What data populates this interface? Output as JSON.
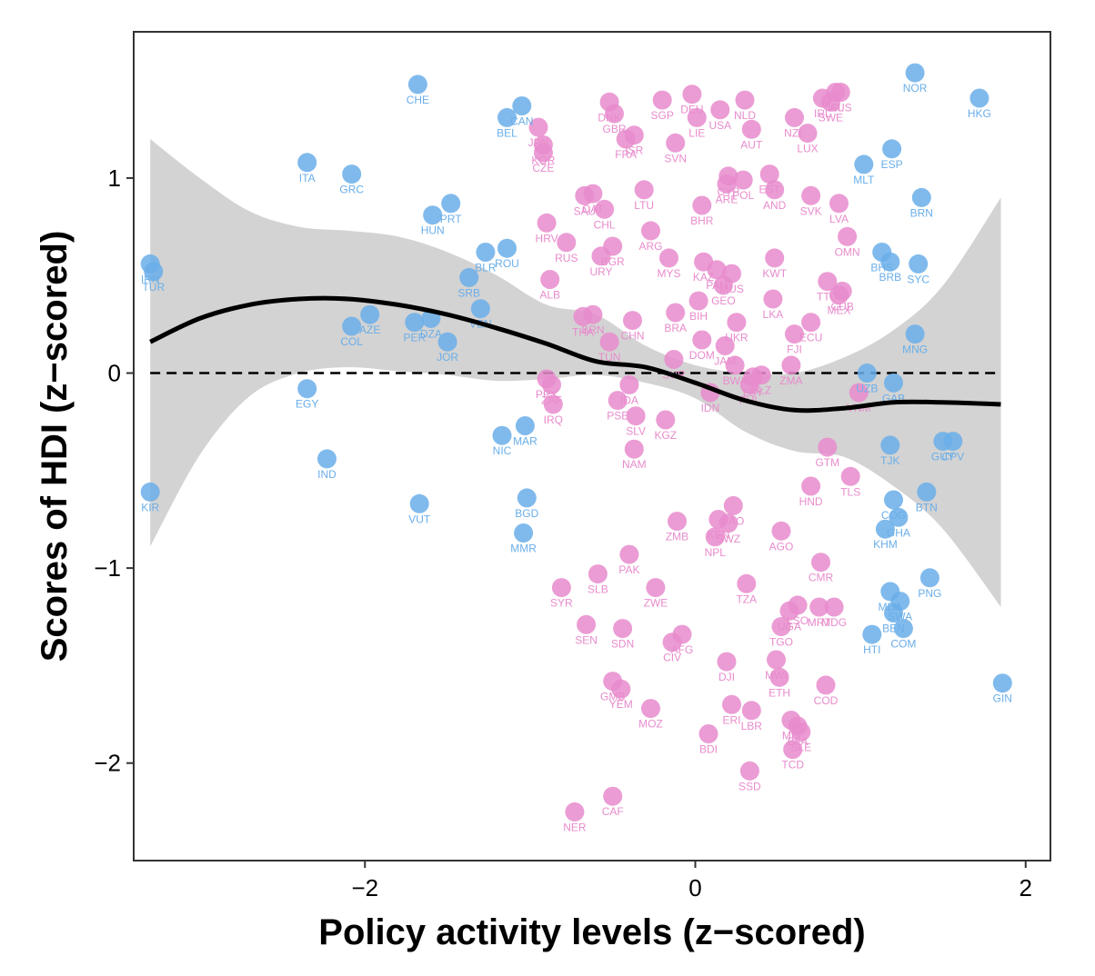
{
  "chart_data": {
    "type": "scatter",
    "xlabel": "Policy activity levels (z−scored)",
    "ylabel": "Scores of HDI (z−scored)",
    "xlim": [
      -3.4,
      2.15
    ],
    "ylim": [
      -2.5,
      1.75
    ],
    "x_ticks": [
      -2,
      0,
      2
    ],
    "y_ticks": [
      -2,
      -1,
      0,
      1
    ],
    "x_tick_labels": [
      "−2",
      "0",
      "2"
    ],
    "y_tick_labels": [
      "−2",
      "−1",
      "0",
      "1"
    ],
    "grid": false,
    "legend": "none",
    "reference_line": {
      "y": 0,
      "style": "dashed",
      "color": "#000000"
    },
    "colors": {
      "group_a": "#6aaee9",
      "group_b": "#e88bcc",
      "band": "#d3d3d3",
      "fit": "#000000"
    },
    "smooth_fit": {
      "x": [
        -3.3,
        -3.0,
        -2.7,
        -2.4,
        -2.1,
        -1.8,
        -1.5,
        -1.2,
        -0.9,
        -0.6,
        -0.3,
        0.0,
        0.3,
        0.6,
        0.9,
        1.2,
        1.5,
        1.85
      ],
      "y": [
        0.16,
        0.28,
        0.35,
        0.38,
        0.38,
        0.35,
        0.3,
        0.23,
        0.15,
        0.06,
        0.03,
        -0.05,
        -0.14,
        -0.19,
        -0.18,
        -0.15,
        -0.15,
        -0.16
      ],
      "lower": [
        -0.89,
        -0.42,
        -0.12,
        0.0,
        0.03,
        0.01,
        -0.01,
        -0.04,
        -0.03,
        -0.01,
        -0.05,
        -0.13,
        -0.3,
        -0.4,
        -0.43,
        -0.58,
        -0.8,
        -1.2
      ],
      "upper": [
        1.2,
        1.0,
        0.83,
        0.75,
        0.73,
        0.7,
        0.62,
        0.5,
        0.35,
        0.3,
        0.14,
        0.04,
        0.0,
        0.0,
        0.08,
        0.22,
        0.45,
        0.9
      ]
    },
    "points": [
      {
        "label": "CHE",
        "x": -1.68,
        "y": 1.48,
        "group": "a"
      },
      {
        "label": "NOR",
        "x": 1.33,
        "y": 1.54,
        "group": "a"
      },
      {
        "label": "HKG",
        "x": 1.72,
        "y": 1.41,
        "group": "a"
      },
      {
        "label": "CAN",
        "x": -1.05,
        "y": 1.37,
        "group": "a"
      },
      {
        "label": "BEL",
        "x": -1.14,
        "y": 1.31,
        "group": "a"
      },
      {
        "label": "ITA",
        "x": -2.35,
        "y": 1.08,
        "group": "a"
      },
      {
        "label": "GRC",
        "x": -2.08,
        "y": 1.02,
        "group": "a"
      },
      {
        "label": "MLT",
        "x": 1.02,
        "y": 1.07,
        "group": "a"
      },
      {
        "label": "ESP",
        "x": 1.19,
        "y": 1.15,
        "group": "a"
      },
      {
        "label": "BRN",
        "x": 1.37,
        "y": 0.9,
        "group": "a"
      },
      {
        "label": "PRT",
        "x": -1.48,
        "y": 0.87,
        "group": "a"
      },
      {
        "label": "HUN",
        "x": -1.59,
        "y": 0.81,
        "group": "a"
      },
      {
        "label": "BLR",
        "x": -1.27,
        "y": 0.62,
        "group": "a"
      },
      {
        "label": "ROU",
        "x": -1.14,
        "y": 0.64,
        "group": "a"
      },
      {
        "label": "IRN",
        "x": -3.3,
        "y": 0.56,
        "group": "a"
      },
      {
        "label": "TUR",
        "x": -3.28,
        "y": 0.52,
        "group": "a"
      },
      {
        "label": "SRB",
        "x": -1.37,
        "y": 0.49,
        "group": "a"
      },
      {
        "label": "VEN",
        "x": -1.3,
        "y": 0.33,
        "group": "a"
      },
      {
        "label": "AZE",
        "x": -1.97,
        "y": 0.3,
        "group": "a"
      },
      {
        "label": "COL",
        "x": -2.08,
        "y": 0.24,
        "group": "a"
      },
      {
        "label": "PER",
        "x": -1.7,
        "y": 0.26,
        "group": "a"
      },
      {
        "label": "DZA",
        "x": -1.6,
        "y": 0.28,
        "group": "a"
      },
      {
        "label": "JOR",
        "x": -1.5,
        "y": 0.16,
        "group": "a"
      },
      {
        "label": "BHS",
        "x": 1.13,
        "y": 0.62,
        "group": "a"
      },
      {
        "label": "BRB",
        "x": 1.18,
        "y": 0.57,
        "group": "a"
      },
      {
        "label": "SYC",
        "x": 1.35,
        "y": 0.56,
        "group": "a"
      },
      {
        "label": "MNG",
        "x": 1.33,
        "y": 0.2,
        "group": "a"
      },
      {
        "label": "UZB",
        "x": 1.04,
        "y": 0.0,
        "group": "a"
      },
      {
        "label": "GAB",
        "x": 1.2,
        "y": -0.05,
        "group": "a"
      },
      {
        "label": "EGY",
        "x": -2.35,
        "y": -0.08,
        "group": "a"
      },
      {
        "label": "NIC",
        "x": -1.17,
        "y": -0.32,
        "group": "a"
      },
      {
        "label": "MAR",
        "x": -1.03,
        "y": -0.27,
        "group": "a"
      },
      {
        "label": "IND",
        "x": -2.23,
        "y": -0.44,
        "group": "a"
      },
      {
        "label": "TJK",
        "x": 1.18,
        "y": -0.37,
        "group": "a"
      },
      {
        "label": "GUY",
        "x": 1.5,
        "y": -0.35,
        "group": "a"
      },
      {
        "label": "CPV",
        "x": 1.56,
        "y": -0.35,
        "group": "a"
      },
      {
        "label": "KIR",
        "x": -3.3,
        "y": -0.61,
        "group": "a"
      },
      {
        "label": "VUT",
        "x": -1.67,
        "y": -0.67,
        "group": "a"
      },
      {
        "label": "BGD",
        "x": -1.02,
        "y": -0.64,
        "group": "a"
      },
      {
        "label": "MMR",
        "x": -1.04,
        "y": -0.82,
        "group": "a"
      },
      {
        "label": "BTN",
        "x": 1.4,
        "y": -0.61,
        "group": "a"
      },
      {
        "label": "COG",
        "x": 1.2,
        "y": -0.65,
        "group": "a"
      },
      {
        "label": "GHA",
        "x": 1.23,
        "y": -0.74,
        "group": "a"
      },
      {
        "label": "KHM",
        "x": 1.15,
        "y": -0.8,
        "group": "a"
      },
      {
        "label": "PNG",
        "x": 1.42,
        "y": -1.05,
        "group": "a"
      },
      {
        "label": "MDA",
        "x": 1.18,
        "y": -1.12,
        "group": "a"
      },
      {
        "label": "SWA",
        "x": 1.24,
        "y": -1.17,
        "group": "a"
      },
      {
        "label": "BEN",
        "x": 1.2,
        "y": -1.23,
        "group": "a"
      },
      {
        "label": "HTI",
        "x": 1.07,
        "y": -1.34,
        "group": "a"
      },
      {
        "label": "COM",
        "x": 1.26,
        "y": -1.31,
        "group": "a"
      },
      {
        "label": "GIN",
        "x": 1.86,
        "y": -1.59,
        "group": "a"
      },
      {
        "label": "DNK",
        "x": -0.52,
        "y": 1.39,
        "group": "b"
      },
      {
        "label": "GBR",
        "x": -0.49,
        "y": 1.33,
        "group": "b"
      },
      {
        "label": "SGP",
        "x": -0.2,
        "y": 1.4,
        "group": "b"
      },
      {
        "label": "DEU",
        "x": -0.02,
        "y": 1.43,
        "group": "b"
      },
      {
        "label": "NLD",
        "x": 0.3,
        "y": 1.4,
        "group": "b"
      },
      {
        "label": "USA",
        "x": 0.15,
        "y": 1.35,
        "group": "b"
      },
      {
        "label": "IRL",
        "x": 0.77,
        "y": 1.41,
        "group": "b"
      },
      {
        "label": "ISL",
        "x": 0.85,
        "y": 1.44,
        "group": "b"
      },
      {
        "label": "AUS",
        "x": 0.88,
        "y": 1.44,
        "group": "b"
      },
      {
        "label": "SWE",
        "x": 0.82,
        "y": 1.39,
        "group": "b"
      },
      {
        "label": "LIE",
        "x": 0.01,
        "y": 1.31,
        "group": "b"
      },
      {
        "label": "NZL",
        "x": 0.6,
        "y": 1.31,
        "group": "b"
      },
      {
        "label": "AUT",
        "x": 0.34,
        "y": 1.25,
        "group": "b"
      },
      {
        "label": "JPN",
        "x": -0.95,
        "y": 1.26,
        "group": "b"
      },
      {
        "label": "KOR",
        "x": -0.92,
        "y": 1.17,
        "group": "b"
      },
      {
        "label": "CZE",
        "x": -0.92,
        "y": 1.13,
        "group": "b"
      },
      {
        "label": "FRA",
        "x": -0.42,
        "y": 1.2,
        "group": "b"
      },
      {
        "label": "ISR",
        "x": -0.37,
        "y": 1.22,
        "group": "b"
      },
      {
        "label": "SVN",
        "x": -0.12,
        "y": 1.18,
        "group": "b"
      },
      {
        "label": "LUX",
        "x": 0.68,
        "y": 1.23,
        "group": "b"
      },
      {
        "label": "CYP",
        "x": 0.2,
        "y": 1.01,
        "group": "b"
      },
      {
        "label": "ARE",
        "x": 0.19,
        "y": 0.97,
        "group": "b"
      },
      {
        "label": "POL",
        "x": 0.29,
        "y": 0.99,
        "group": "b"
      },
      {
        "label": "EST",
        "x": 0.45,
        "y": 1.02,
        "group": "b"
      },
      {
        "label": "AND",
        "x": 0.48,
        "y": 0.94,
        "group": "b"
      },
      {
        "label": "SVK",
        "x": 0.7,
        "y": 0.91,
        "group": "b"
      },
      {
        "label": "SAU",
        "x": -0.67,
        "y": 0.91,
        "group": "b"
      },
      {
        "label": "QAT",
        "x": -0.62,
        "y": 0.92,
        "group": "b"
      },
      {
        "label": "LTU",
        "x": -0.31,
        "y": 0.94,
        "group": "b"
      },
      {
        "label": "BHR",
        "x": 0.04,
        "y": 0.86,
        "group": "b"
      },
      {
        "label": "LVA",
        "x": 0.87,
        "y": 0.87,
        "group": "b"
      },
      {
        "label": "CHL",
        "x": -0.55,
        "y": 0.84,
        "group": "b"
      },
      {
        "label": "HRV",
        "x": -0.9,
        "y": 0.77,
        "group": "b"
      },
      {
        "label": "ARG",
        "x": -0.27,
        "y": 0.73,
        "group": "b"
      },
      {
        "label": "OMN",
        "x": 0.92,
        "y": 0.7,
        "group": "b"
      },
      {
        "label": "RUS",
        "x": -0.78,
        "y": 0.67,
        "group": "b"
      },
      {
        "label": "BGR",
        "x": -0.5,
        "y": 0.65,
        "group": "b"
      },
      {
        "label": "URY",
        "x": -0.57,
        "y": 0.6,
        "group": "b"
      },
      {
        "label": "MYS",
        "x": -0.16,
        "y": 0.59,
        "group": "b"
      },
      {
        "label": "KAZ",
        "x": 0.05,
        "y": 0.57,
        "group": "b"
      },
      {
        "label": "KWT",
        "x": 0.48,
        "y": 0.59,
        "group": "b"
      },
      {
        "label": "ALB",
        "x": -0.88,
        "y": 0.48,
        "group": "b"
      },
      {
        "label": "PAN",
        "x": 0.13,
        "y": 0.53,
        "group": "b"
      },
      {
        "label": "MUS",
        "x": 0.22,
        "y": 0.51,
        "group": "b"
      },
      {
        "label": "GEO",
        "x": 0.17,
        "y": 0.45,
        "group": "b"
      },
      {
        "label": "TTO",
        "x": 0.8,
        "y": 0.47,
        "group": "b"
      },
      {
        "label": "CUB",
        "x": 0.89,
        "y": 0.42,
        "group": "b"
      },
      {
        "label": "MEX",
        "x": 0.87,
        "y": 0.4,
        "group": "b"
      },
      {
        "label": "LKA",
        "x": 0.47,
        "y": 0.38,
        "group": "b"
      },
      {
        "label": "BIH",
        "x": 0.02,
        "y": 0.37,
        "group": "b"
      },
      {
        "label": "THA",
        "x": -0.68,
        "y": 0.29,
        "group": "b"
      },
      {
        "label": "BRN",
        "x": -0.62,
        "y": 0.3,
        "group": "b"
      },
      {
        "label": "CHN",
        "x": -0.38,
        "y": 0.27,
        "group": "b"
      },
      {
        "label": "BRA",
        "x": -0.12,
        "y": 0.31,
        "group": "b"
      },
      {
        "label": "UKR",
        "x": 0.25,
        "y": 0.26,
        "group": "b"
      },
      {
        "label": "ECU",
        "x": 0.7,
        "y": 0.26,
        "group": "b"
      },
      {
        "label": "FJI",
        "x": 0.6,
        "y": 0.2,
        "group": "b"
      },
      {
        "label": "TUN",
        "x": -0.52,
        "y": 0.16,
        "group": "b"
      },
      {
        "label": "DOM",
        "x": 0.04,
        "y": 0.17,
        "group": "b"
      },
      {
        "label": "JAM",
        "x": 0.18,
        "y": 0.14,
        "group": "b"
      },
      {
        "label": "SUR",
        "x": -0.13,
        "y": 0.07,
        "group": "b"
      },
      {
        "label": "BWA",
        "x": 0.24,
        "y": 0.04,
        "group": "b"
      },
      {
        "label": "BLZ",
        "x": 0.4,
        "y": -0.01,
        "group": "b"
      },
      {
        "label": "LBY",
        "x": 0.35,
        "y": -0.02,
        "group": "b"
      },
      {
        "label": "ZMA",
        "x": 0.58,
        "y": 0.04,
        "group": "b"
      },
      {
        "label": "PRY",
        "x": -0.9,
        "y": -0.03,
        "group": "b"
      },
      {
        "label": "ZAF",
        "x": -0.87,
        "y": -0.06,
        "group": "b"
      },
      {
        "label": "IRQ",
        "x": -0.86,
        "y": -0.16,
        "group": "b"
      },
      {
        "label": "IDN",
        "x": 0.09,
        "y": -0.1,
        "group": "b"
      },
      {
        "label": "VNM",
        "x": 0.99,
        "y": -0.1,
        "group": "b"
      },
      {
        "label": "PHL",
        "x": 0.33,
        "y": -0.06,
        "group": "b"
      },
      {
        "label": "IDA",
        "x": -0.4,
        "y": -0.06,
        "group": "b"
      },
      {
        "label": "PSE",
        "x": -0.47,
        "y": -0.14,
        "group": "b"
      },
      {
        "label": "SLV",
        "x": -0.36,
        "y": -0.22,
        "group": "b"
      },
      {
        "label": "KGZ",
        "x": -0.18,
        "y": -0.24,
        "group": "b"
      },
      {
        "label": "NAM",
        "x": -0.37,
        "y": -0.39,
        "group": "b"
      },
      {
        "label": "GTM",
        "x": 0.8,
        "y": -0.38,
        "group": "b"
      },
      {
        "label": "TLS",
        "x": 0.94,
        "y": -0.53,
        "group": "b"
      },
      {
        "label": "HND",
        "x": 0.7,
        "y": -0.58,
        "group": "b"
      },
      {
        "label": "LAO",
        "x": 0.23,
        "y": -0.68,
        "group": "b"
      },
      {
        "label": "KEN",
        "x": 0.14,
        "y": -0.75,
        "group": "b"
      },
      {
        "label": "SWZ",
        "x": 0.2,
        "y": -0.77,
        "group": "b"
      },
      {
        "label": "ZMB",
        "x": -0.11,
        "y": -0.76,
        "group": "b"
      },
      {
        "label": "NPL",
        "x": 0.12,
        "y": -0.84,
        "group": "b"
      },
      {
        "label": "AGO",
        "x": 0.52,
        "y": -0.81,
        "group": "b"
      },
      {
        "label": "PAK",
        "x": -0.4,
        "y": -0.93,
        "group": "b"
      },
      {
        "label": "CMR",
        "x": 0.76,
        "y": -0.97,
        "group": "b"
      },
      {
        "label": "SLB",
        "x": -0.59,
        "y": -1.03,
        "group": "b"
      },
      {
        "label": "SYR",
        "x": -0.81,
        "y": -1.1,
        "group": "b"
      },
      {
        "label": "ZWE",
        "x": -0.24,
        "y": -1.1,
        "group": "b"
      },
      {
        "label": "TZA",
        "x": 0.31,
        "y": -1.08,
        "group": "b"
      },
      {
        "label": "LSO",
        "x": 0.62,
        "y": -1.19,
        "group": "b"
      },
      {
        "label": "MRT",
        "x": 0.75,
        "y": -1.2,
        "group": "b"
      },
      {
        "label": "MDG",
        "x": 0.84,
        "y": -1.2,
        "group": "b"
      },
      {
        "label": "UGA",
        "x": 0.57,
        "y": -1.22,
        "group": "b"
      },
      {
        "label": "TGO",
        "x": 0.52,
        "y": -1.3,
        "group": "b"
      },
      {
        "label": "SEN",
        "x": -0.66,
        "y": -1.29,
        "group": "b"
      },
      {
        "label": "SDN",
        "x": -0.44,
        "y": -1.31,
        "group": "b"
      },
      {
        "label": "AFG",
        "x": -0.08,
        "y": -1.34,
        "group": "b"
      },
      {
        "label": "CIV",
        "x": -0.14,
        "y": -1.38,
        "group": "b"
      },
      {
        "label": "DJI",
        "x": 0.19,
        "y": -1.48,
        "group": "b"
      },
      {
        "label": "MWI",
        "x": 0.49,
        "y": -1.47,
        "group": "b"
      },
      {
        "label": "ETH",
        "x": 0.51,
        "y": -1.56,
        "group": "b"
      },
      {
        "label": "COD",
        "x": 0.79,
        "y": -1.6,
        "group": "b"
      },
      {
        "label": "GMB",
        "x": -0.5,
        "y": -1.58,
        "group": "b"
      },
      {
        "label": "YEM",
        "x": -0.45,
        "y": -1.62,
        "group": "b"
      },
      {
        "label": "MOZ",
        "x": -0.27,
        "y": -1.72,
        "group": "b"
      },
      {
        "label": "ERI",
        "x": 0.22,
        "y": -1.7,
        "group": "b"
      },
      {
        "label": "LBR",
        "x": 0.34,
        "y": -1.73,
        "group": "b"
      },
      {
        "label": "MLI",
        "x": 0.58,
        "y": -1.78,
        "group": "b"
      },
      {
        "label": "BFA",
        "x": 0.62,
        "y": -1.81,
        "group": "b"
      },
      {
        "label": "SLE",
        "x": 0.64,
        "y": -1.84,
        "group": "b"
      },
      {
        "label": "BDI",
        "x": 0.08,
        "y": -1.85,
        "group": "b"
      },
      {
        "label": "TCD",
        "x": 0.59,
        "y": -1.93,
        "group": "b"
      },
      {
        "label": "SSD",
        "x": 0.33,
        "y": -2.04,
        "group": "b"
      },
      {
        "label": "CAF",
        "x": -0.5,
        "y": -2.17,
        "group": "b"
      },
      {
        "label": "NER",
        "x": -0.73,
        "y": -2.25,
        "group": "b"
      }
    ]
  }
}
